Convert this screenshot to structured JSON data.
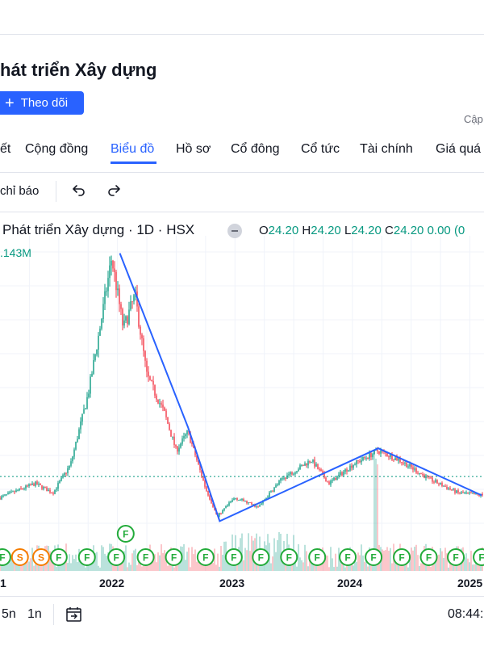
{
  "header": {
    "title": "hát triển Xây dựng",
    "follow_label": "Theo dõi",
    "update_label": "Cập"
  },
  "tabs": [
    {
      "label": "ết"
    },
    {
      "label": "Cộng đồng"
    },
    {
      "label": "Biểu đồ",
      "active": true
    },
    {
      "label": "Hồ sơ"
    },
    {
      "label": "Cổ đông"
    },
    {
      "label": "Cổ tức"
    },
    {
      "label": "Tài chính"
    },
    {
      "label": "Giá quá"
    }
  ],
  "toolbar": {
    "indicators_label": "chỉ báo",
    "undo_icon": "undo-icon",
    "redo_icon": "redo-icon"
  },
  "legend": {
    "title": "Phát triển Xây dựng · 1D · HSX",
    "o_label": "O",
    "o_value": "24.20",
    "h_label": "H",
    "h_value": "24.20",
    "l_label": "L",
    "l_value": "24.20",
    "c_label": "C",
    "c_value": "24.20",
    "change": "0.00 (0",
    "volume": ".143M"
  },
  "chart_data": {
    "type": "line",
    "x_tick_labels": [
      "1",
      "2022",
      "2023",
      "2024",
      "2025"
    ],
    "price_path": [
      {
        "x": 2021.0,
        "y": 12
      },
      {
        "x": 2021.3,
        "y": 15
      },
      {
        "x": 2021.45,
        "y": 13
      },
      {
        "x": 2021.6,
        "y": 19
      },
      {
        "x": 2021.75,
        "y": 34
      },
      {
        "x": 2021.85,
        "y": 48
      },
      {
        "x": 2021.95,
        "y": 63
      },
      {
        "x": 2022.05,
        "y": 48
      },
      {
        "x": 2022.15,
        "y": 55
      },
      {
        "x": 2022.25,
        "y": 38
      },
      {
        "x": 2022.4,
        "y": 30
      },
      {
        "x": 2022.5,
        "y": 22
      },
      {
        "x": 2022.6,
        "y": 26
      },
      {
        "x": 2022.75,
        "y": 14
      },
      {
        "x": 2022.85,
        "y": 8
      },
      {
        "x": 2023.0,
        "y": 12
      },
      {
        "x": 2023.2,
        "y": 10
      },
      {
        "x": 2023.4,
        "y": 16
      },
      {
        "x": 2023.65,
        "y": 20
      },
      {
        "x": 2023.8,
        "y": 15
      },
      {
        "x": 2024.0,
        "y": 19
      },
      {
        "x": 2024.22,
        "y": 22
      },
      {
        "x": 2024.4,
        "y": 20
      },
      {
        "x": 2024.65,
        "y": 16
      },
      {
        "x": 2024.9,
        "y": 13
      },
      {
        "x": 2025.1,
        "y": 12.5
      }
    ],
    "trend_lines": [
      [
        {
          "x": 2022.02,
          "y": 64
        },
        {
          "x": 2022.6,
          "y": 27
        },
        {
          "x": 2022.87,
          "y": 7
        },
        {
          "x": 2024.22,
          "y": 22.5
        },
        {
          "x": 2025.1,
          "y": 12.5
        }
      ]
    ],
    "reference_level": 16.5,
    "xlim": [
      2021.0,
      2025.12
    ],
    "ylim": [
      5,
      66
    ],
    "markers": [
      {
        "x": 2021.02,
        "label": "F",
        "kind": "green"
      },
      {
        "x": 2021.17,
        "label": "S",
        "kind": "orange"
      },
      {
        "x": 2021.35,
        "label": "S",
        "kind": "orange"
      },
      {
        "x": 2021.5,
        "label": "F",
        "kind": "green"
      },
      {
        "x": 2021.74,
        "label": "F",
        "kind": "green"
      },
      {
        "x": 2021.99,
        "label": "F",
        "kind": "green"
      },
      {
        "x": 2022.07,
        "label": "F",
        "kind": "green",
        "row": 2
      },
      {
        "x": 2022.24,
        "label": "F",
        "kind": "green"
      },
      {
        "x": 2022.48,
        "label": "F",
        "kind": "green"
      },
      {
        "x": 2022.75,
        "label": "F",
        "kind": "green"
      },
      {
        "x": 2022.99,
        "label": "F",
        "kind": "green"
      },
      {
        "x": 2023.22,
        "label": "F",
        "kind": "green"
      },
      {
        "x": 2023.46,
        "label": "F",
        "kind": "green"
      },
      {
        "x": 2023.7,
        "label": "F",
        "kind": "green"
      },
      {
        "x": 2023.96,
        "label": "F",
        "kind": "green"
      },
      {
        "x": 2024.18,
        "label": "F",
        "kind": "green"
      },
      {
        "x": 2024.42,
        "label": "F",
        "kind": "green"
      },
      {
        "x": 2024.65,
        "label": "F",
        "kind": "green"
      },
      {
        "x": 2024.88,
        "label": "F",
        "kind": "green"
      },
      {
        "x": 2025.1,
        "label": "F",
        "kind": "green"
      }
    ]
  },
  "bottom": {
    "range_5y": "5n",
    "range_1y": "1n",
    "calendar_icon": "calendar-goto-icon",
    "time": "08:44:"
  },
  "colors": {
    "accent": "#2962ff",
    "up": "#089981",
    "down": "#f23645",
    "trend": "#2962ff"
  }
}
